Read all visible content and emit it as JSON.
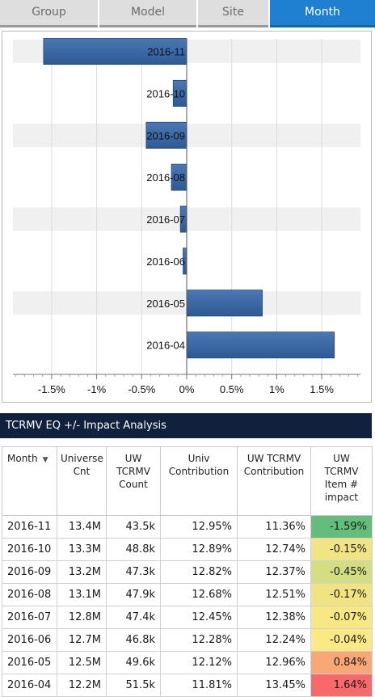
{
  "tabs": [
    {
      "label": "Group",
      "active": false
    },
    {
      "label": "Model",
      "active": false
    },
    {
      "label": "Site",
      "active": false
    },
    {
      "label": "Month",
      "active": true
    }
  ],
  "colors": {
    "tab_active": "#1f7fd0",
    "bar_fill": "#2e5a94",
    "band_light": "#f0f0f0",
    "header_bg": "#10213d"
  },
  "chart_data": {
    "type": "bar",
    "orientation": "horizontal",
    "categories": [
      "2016-11",
      "2016-10",
      "2016-09",
      "2016-08",
      "2016-07",
      "2016-06",
      "2016-05",
      "2016-04"
    ],
    "values": [
      -1.59,
      -0.15,
      -0.45,
      -0.17,
      -0.07,
      -0.04,
      0.84,
      1.64
    ],
    "xlim": [
      -1.93,
      1.93
    ],
    "xticks": [
      -1.5,
      -1.0,
      -0.5,
      0,
      0.5,
      1.0,
      1.5
    ],
    "xtick_labels": [
      "-1.5%",
      "-1%",
      "-0.5%",
      "0%",
      "0.5%",
      "1%",
      "1.5%"
    ],
    "grid": true,
    "title": "",
    "xlabel": "",
    "ylabel": ""
  },
  "table": {
    "title": "TCRMV EQ +/- Impact Analysis",
    "sort_icon": "sort-desc-icon",
    "headers": {
      "month": "Month",
      "universe_cnt": [
        "Universe",
        "Cnt"
      ],
      "uw_count": [
        "UW",
        "TCRMV",
        "Count"
      ],
      "univ_contrib": [
        "Univ",
        "Contribution"
      ],
      "uw_contrib": [
        "UW TCRMV",
        "Contribution"
      ],
      "impact": [
        "UW",
        "TCRMV",
        "Item #",
        "impact"
      ]
    },
    "rows": [
      {
        "month": "2016-11",
        "universe_cnt": "13.4M",
        "uw_count": "43.5k",
        "univ_contrib": "12.95%",
        "uw_contrib": "11.36%",
        "impact": "-1.59%",
        "impact_color": "#63be7b"
      },
      {
        "month": "2016-10",
        "universe_cnt": "13.3M",
        "uw_count": "48.8k",
        "univ_contrib": "12.89%",
        "uw_contrib": "12.74%",
        "impact": "-0.15%",
        "impact_color": "#f1e484"
      },
      {
        "month": "2016-09",
        "universe_cnt": "13.2M",
        "uw_count": "47.3k",
        "univ_contrib": "12.82%",
        "uw_contrib": "12.37%",
        "impact": "-0.45%",
        "impact_color": "#d3de82"
      },
      {
        "month": "2016-08",
        "universe_cnt": "13.1M",
        "uw_count": "47.9k",
        "univ_contrib": "12.68%",
        "uw_contrib": "12.51%",
        "impact": "-0.17%",
        "impact_color": "#efe384"
      },
      {
        "month": "2016-07",
        "universe_cnt": "12.8M",
        "uw_count": "47.4k",
        "univ_contrib": "12.45%",
        "uw_contrib": "12.38%",
        "impact": "-0.07%",
        "impact_color": "#f7e884"
      },
      {
        "month": "2016-06",
        "universe_cnt": "12.7M",
        "uw_count": "46.8k",
        "univ_contrib": "12.28%",
        "uw_contrib": "12.24%",
        "impact": "-0.04%",
        "impact_color": "#fae984"
      },
      {
        "month": "2016-05",
        "universe_cnt": "12.5M",
        "uw_count": "49.6k",
        "univ_contrib": "12.12%",
        "uw_contrib": "12.96%",
        "impact": "0.84%",
        "impact_color": "#f9a774"
      },
      {
        "month": "2016-04",
        "universe_cnt": "12.2M",
        "uw_count": "51.5k",
        "univ_contrib": "11.81%",
        "uw_contrib": "13.45%",
        "impact": "1.64%",
        "impact_color": "#f8696b"
      }
    ]
  }
}
